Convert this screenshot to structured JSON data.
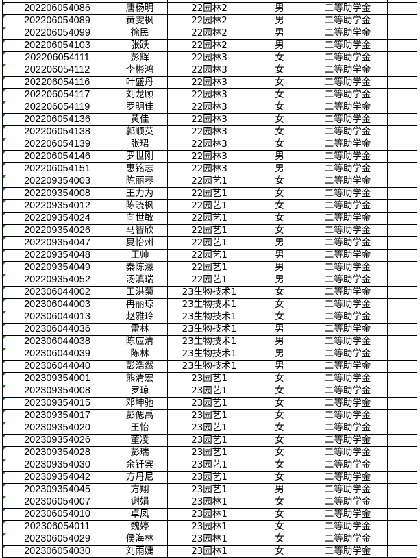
{
  "award": "二等助学金",
  "rows": [
    [
      "202206054086",
      "唐杨明",
      "22园林2",
      "男"
    ],
    [
      "202206054089",
      "黄雯枫",
      "22园林2",
      "男"
    ],
    [
      "202206054099",
      "徐民",
      "22园林2",
      "男"
    ],
    [
      "202206054103",
      "张跃",
      "22园林2",
      "男"
    ],
    [
      "202206054111",
      "彭辉",
      "22园林3",
      "女"
    ],
    [
      "202206054112",
      "李彬鸿",
      "22园林3",
      "女"
    ],
    [
      "202206054116",
      "叶盛丹",
      "22园林3",
      "女"
    ],
    [
      "202206054117",
      "刘龙顾",
      "22园林3",
      "女"
    ],
    [
      "202206054119",
      "罗明佳",
      "22园林3",
      "女"
    ],
    [
      "202206054136",
      "黄佳",
      "22园林3",
      "女"
    ],
    [
      "202206054138",
      "郭顺英",
      "22园林3",
      "女"
    ],
    [
      "202206054139",
      "张珺",
      "22园林3",
      "女"
    ],
    [
      "202206054146",
      "罗世刚",
      "22园林3",
      "男"
    ],
    [
      "202206054151",
      "惠铭志",
      "22园林3",
      "男"
    ],
    [
      "202209354003",
      "陈丽琴",
      "22园艺1",
      "女"
    ],
    [
      "202209354008",
      "王力为",
      "22园艺1",
      "女"
    ],
    [
      "202209354012",
      "陈晓枫",
      "22园艺1",
      "女"
    ],
    [
      "202209354024",
      "向世敏",
      "22园艺1",
      "女"
    ],
    [
      "202209354026",
      "马智欣",
      "22园艺1",
      "女"
    ],
    [
      "202209354047",
      "夏怡州",
      "22园艺1",
      "男"
    ],
    [
      "202209354048",
      "王帅",
      "22园艺1",
      "男"
    ],
    [
      "202209354049",
      "秦陈濛",
      "22园艺1",
      "男"
    ],
    [
      "202209354052",
      "汤滇瑞",
      "22园艺1",
      "男"
    ],
    [
      "202306044002",
      "田洪菊",
      "23生物技术1",
      "女"
    ],
    [
      "202306044003",
      "冉丽琼",
      "23生物技术1",
      "女"
    ],
    [
      "202306044013",
      "赵雅玲",
      "23生物技术1",
      "女"
    ],
    [
      "202306044036",
      "雷林",
      "23生物技术1",
      "男"
    ],
    [
      "202306044038",
      "陈应清",
      "23生物技术1",
      "男"
    ],
    [
      "202306044039",
      "陈林",
      "23生物技术1",
      "男"
    ],
    [
      "202306044040",
      "彭浩然",
      "23生物技术1",
      "男"
    ],
    [
      "202309354001",
      "熊清宏",
      "23园艺1",
      "女"
    ],
    [
      "202309354008",
      "罗琼",
      "23园艺1",
      "女"
    ],
    [
      "202309354015",
      "邓坤驰",
      "23园艺1",
      "女"
    ],
    [
      "202309354017",
      "彭偲禹",
      "23园艺1",
      "女"
    ],
    [
      "202309354020",
      "王怡",
      "23园艺1",
      "女"
    ],
    [
      "202309354026",
      "董凌",
      "23园艺1",
      "女"
    ],
    [
      "202309354028",
      "彭瑞",
      "23园艺1",
      "女"
    ],
    [
      "202309354030",
      "余钎宾",
      "23园艺1",
      "女"
    ],
    [
      "202309354042",
      "方丹尼",
      "23园艺1",
      "女"
    ],
    [
      "202309354045",
      "方翔",
      "23园艺1",
      "男"
    ],
    [
      "202306054007",
      "谢娟",
      "23园林1",
      "女"
    ],
    [
      "202306054010",
      "卓凤",
      "23园林1",
      "女"
    ],
    [
      "202306054011",
      "魏婷",
      "23园林1",
      "女"
    ],
    [
      "202306054029",
      "侯海林",
      "23园林1",
      "女"
    ],
    [
      "202306054030",
      "刘雨婕",
      "23园林1",
      "女"
    ]
  ]
}
